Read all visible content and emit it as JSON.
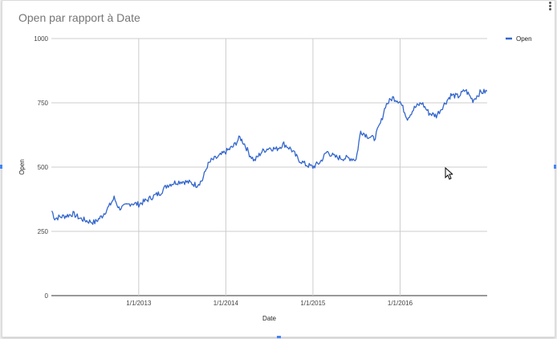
{
  "chart_title": "Open par rapport à Date",
  "chart_data": {
    "type": "line",
    "xlabel": "Date",
    "ylabel": "Open",
    "xlim": [
      "2012-01-01",
      "2016-12-31"
    ],
    "ylim": [
      0,
      1000
    ],
    "yticks": [
      0,
      250,
      500,
      750,
      1000
    ],
    "xticks": [
      "1/1/2013",
      "1/1/2014",
      "1/1/2015",
      "1/1/2016"
    ],
    "xtick_dates": [
      "2013-01-01",
      "2014-01-01",
      "2015-01-01",
      "2016-01-01"
    ],
    "grid": true,
    "legend": "right",
    "series": [
      {
        "name": "Open",
        "color": "#3366cc",
        "points": [
          [
            "2012-01-03",
            330
          ],
          [
            "2012-01-15",
            300
          ],
          [
            "2012-02-01",
            305
          ],
          [
            "2012-03-01",
            310
          ],
          [
            "2012-04-01",
            318
          ],
          [
            "2012-05-01",
            300
          ],
          [
            "2012-06-01",
            290
          ],
          [
            "2012-07-01",
            285
          ],
          [
            "2012-08-01",
            310
          ],
          [
            "2012-09-01",
            350
          ],
          [
            "2012-09-20",
            380
          ],
          [
            "2012-10-10",
            340
          ],
          [
            "2012-11-01",
            345
          ],
          [
            "2012-12-01",
            360
          ],
          [
            "2013-01-01",
            355
          ],
          [
            "2013-02-01",
            370
          ],
          [
            "2013-03-01",
            385
          ],
          [
            "2013-04-01",
            400
          ],
          [
            "2013-05-01",
            430
          ],
          [
            "2013-06-01",
            440
          ],
          [
            "2013-07-01",
            445
          ],
          [
            "2013-08-01",
            440
          ],
          [
            "2013-09-01",
            430
          ],
          [
            "2013-09-25",
            450
          ],
          [
            "2013-10-15",
            505
          ],
          [
            "2013-11-01",
            525
          ],
          [
            "2013-12-01",
            540
          ],
          [
            "2014-01-01",
            560
          ],
          [
            "2014-02-01",
            580
          ],
          [
            "2014-03-01",
            615
          ],
          [
            "2014-03-20",
            590
          ],
          [
            "2014-04-10",
            550
          ],
          [
            "2014-05-01",
            525
          ],
          [
            "2014-06-01",
            560
          ],
          [
            "2014-07-01",
            575
          ],
          [
            "2014-08-01",
            570
          ],
          [
            "2014-09-01",
            590
          ],
          [
            "2014-10-01",
            570
          ],
          [
            "2014-11-01",
            530
          ],
          [
            "2014-12-01",
            510
          ],
          [
            "2015-01-01",
            500
          ],
          [
            "2015-02-01",
            520
          ],
          [
            "2015-03-01",
            560
          ],
          [
            "2015-04-01",
            540
          ],
          [
            "2015-05-01",
            535
          ],
          [
            "2015-06-01",
            535
          ],
          [
            "2015-07-01",
            530
          ],
          [
            "2015-07-20",
            640
          ],
          [
            "2015-08-20",
            620
          ],
          [
            "2015-09-15",
            610
          ],
          [
            "2015-10-15",
            680
          ],
          [
            "2015-11-01",
            740
          ],
          [
            "2015-12-01",
            770
          ],
          [
            "2016-01-01",
            755
          ],
          [
            "2016-02-01",
            690
          ],
          [
            "2016-03-01",
            730
          ],
          [
            "2016-04-01",
            750
          ],
          [
            "2016-05-01",
            710
          ],
          [
            "2016-06-01",
            700
          ],
          [
            "2016-07-01",
            740
          ],
          [
            "2016-08-01",
            780
          ],
          [
            "2016-09-01",
            775
          ],
          [
            "2016-10-01",
            800
          ],
          [
            "2016-11-01",
            760
          ],
          [
            "2016-12-01",
            790
          ],
          [
            "2016-12-30",
            795
          ]
        ]
      }
    ]
  }
}
